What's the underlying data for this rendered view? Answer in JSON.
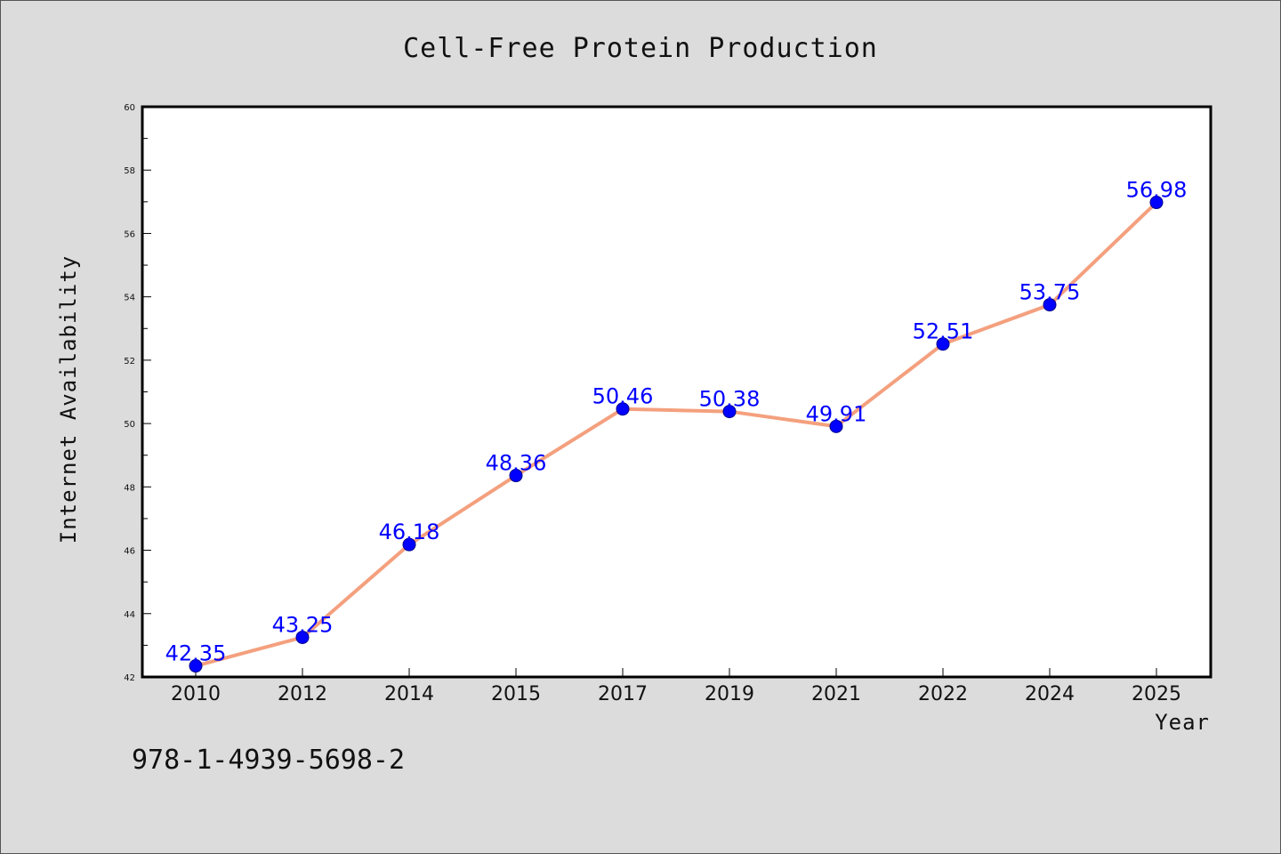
{
  "chart_data": {
    "type": "line",
    "title": "Cell-Free Protein Production",
    "xlabel": "Year",
    "ylabel": "Internet Availability",
    "categories": [
      "2010",
      "2012",
      "2014",
      "2015",
      "2017",
      "2019",
      "2021",
      "2022",
      "2024",
      "2025"
    ],
    "series": [
      {
        "values": [
          42.35,
          43.25,
          46.18,
          48.36,
          50.46,
          50.38,
          49.91,
          52.51,
          53.75,
          56.98
        ],
        "data_labels": [
          "42.35",
          "43.25",
          "46.18",
          "48.36",
          "50.46",
          "50.38",
          "49.91",
          "52.51",
          "53.75",
          "56.98"
        ]
      }
    ],
    "ylim": [
      42,
      60
    ],
    "yticks": [
      "42",
      "44",
      "46",
      "48",
      "50",
      "52",
      "54",
      "56",
      "58",
      "60"
    ],
    "grid": false,
    "line_color": "#f4a07e",
    "marker_color": "#0000ff",
    "label_color": "#0000ff",
    "background_color": "#dcdcdc",
    "plot_background_color": "#ffffff"
  },
  "footer": {
    "isbn": "978-1-4939-5698-2"
  }
}
